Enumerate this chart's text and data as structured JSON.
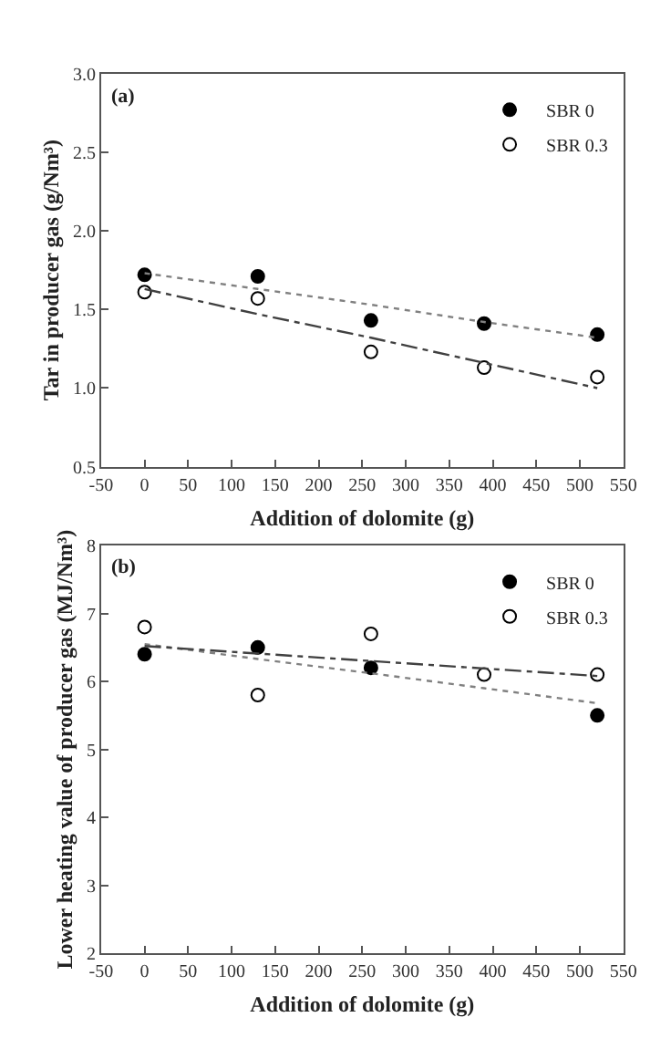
{
  "chart_data": [
    {
      "type": "scatter",
      "xlabel": "Addition of dolomite (g)",
      "ylabel": "Tar in producer gas (g/Nm³)",
      "annotations": [
        "(a)"
      ],
      "x": [
        0,
        130,
        260,
        390,
        520
      ],
      "xlim": [
        -50,
        550
      ],
      "xticks": [
        -50,
        0,
        50,
        100,
        150,
        200,
        250,
        300,
        350,
        400,
        450,
        500,
        550
      ],
      "ylim": [
        0.5,
        3.0
      ],
      "yticks": [
        {
          "value": 0.5,
          "label": "0.5"
        },
        {
          "value": 1.0,
          "label": "1.0"
        },
        {
          "value": 1.5,
          "label": "1.5"
        },
        {
          "value": 2.0,
          "label": "2.0"
        },
        {
          "value": 2.5,
          "label": "2.5"
        },
        {
          "value": 3.0,
          "label": "3.0"
        }
      ],
      "legend": "top right",
      "series": [
        {
          "name": "SBR 0",
          "color": "#000000",
          "marker": "circle",
          "values": [
            1.72,
            1.71,
            1.43,
            1.41,
            1.34
          ]
        },
        {
          "name": "SBR 0.3",
          "color": "#ffffff",
          "marker": "circle",
          "values": [
            1.61,
            1.57,
            1.23,
            1.13,
            1.07
          ]
        },
        {
          "type": "line",
          "color": "#808080",
          "line_style": "dotted",
          "values": [
            1.73,
            1.63,
            1.53,
            1.42,
            1.32
          ]
        },
        {
          "type": "line",
          "color": "#404040",
          "line_style": "dashed",
          "values": [
            1.63,
            1.47,
            1.32,
            1.16,
            1.0
          ]
        }
      ]
    },
    {
      "type": "scatter",
      "xlabel": "Addition of dolomite (g)",
      "ylabel": "Lower heating value of producer gas (MJ/Nm³)",
      "annotations": [
        "(b)"
      ],
      "x": [
        0,
        130,
        260,
        390,
        520
      ],
      "xlim": [
        -50,
        550
      ],
      "xticks": [
        -50,
        0,
        50,
        100,
        150,
        200,
        250,
        300,
        350,
        400,
        450,
        500,
        550
      ],
      "ylim": [
        2,
        8
      ],
      "yticks": [
        2,
        3,
        4,
        5,
        6,
        7,
        8
      ],
      "legend": "top right",
      "series": [
        {
          "name": "SBR 0",
          "color": "#000000",
          "marker": "circle",
          "values": [
            6.4,
            6.5,
            6.2,
            null,
            5.5
          ]
        },
        {
          "name": "SBR 0.3",
          "color": "#ffffff",
          "marker": "circle",
          "values": [
            6.8,
            5.8,
            6.7,
            6.1,
            6.1
          ]
        },
        {
          "type": "line",
          "color": "#808080",
          "line_style": "dotted",
          "values": [
            6.55,
            6.33,
            6.12,
            5.9,
            5.68
          ]
        },
        {
          "type": "line",
          "color": "#404040",
          "line_style": "dashed",
          "values": [
            6.52,
            6.41,
            6.3,
            6.19,
            6.08
          ]
        }
      ]
    }
  ]
}
